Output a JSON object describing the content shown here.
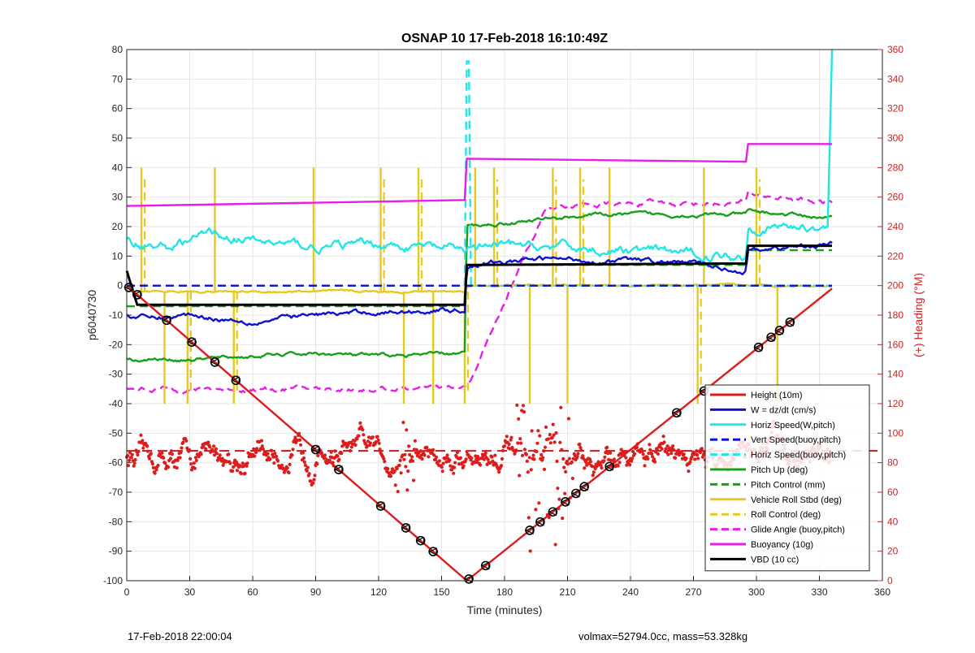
{
  "footer": {
    "left": "17-Feb-2018 22:00:04",
    "right": "volmax=52794.0cc, mass=53.328kg"
  },
  "chart_data": {
    "type": "line",
    "title": "OSNAP 10 17-Feb-2018 16:10:49Z",
    "xlabel": "Time (minutes)",
    "ylabel": "p6040730",
    "ylabel_right": "(+) Heading (°M)",
    "xlim": [
      0,
      360
    ],
    "ylim": [
      -100,
      80
    ],
    "ylim_right": [
      0,
      360
    ],
    "x_ticks": [
      0,
      30,
      60,
      90,
      120,
      150,
      180,
      210,
      240,
      270,
      300,
      330,
      360
    ],
    "y_ticks": [
      80,
      70,
      60,
      50,
      40,
      30,
      20,
      10,
      0,
      -10,
      -20,
      -30,
      -40,
      -50,
      -60,
      -70,
      -80,
      -90,
      -100
    ],
    "y_right_ticks": [
      360,
      340,
      320,
      300,
      280,
      260,
      240,
      220,
      200,
      180,
      160,
      140,
      120,
      100,
      80,
      60,
      40,
      20,
      0
    ],
    "grid": true,
    "legend_position": "bottom-right",
    "series": [
      {
        "name": "Height (10m)",
        "color": "#dd1c1c",
        "style": "solid",
        "x": [
          0,
          162,
          336
        ],
        "y": [
          0,
          -100,
          -1
        ],
        "markers_x": [
          1,
          5,
          19,
          31,
          42,
          52,
          90,
          101,
          121,
          133,
          140,
          146,
          163,
          171,
          192,
          197,
          203,
          209,
          214,
          218,
          230,
          262,
          275,
          301,
          307,
          311,
          316
        ]
      },
      {
        "name": "W = dz/dt (cm/s)",
        "color": "#1010d0",
        "style": "solid",
        "x": [
          0,
          10,
          30,
          60,
          90,
          120,
          161,
          162,
          200,
          260,
          295,
          296,
          336
        ],
        "y": [
          -10,
          -11,
          -10,
          -12,
          -10,
          -9,
          -8,
          7,
          9,
          8,
          5,
          12,
          14
        ]
      },
      {
        "name": "Horiz Speed(W,pitch)",
        "color": "#22e6e6",
        "style": "solid",
        "x": [
          0,
          20,
          40,
          60,
          90,
          120,
          161,
          162,
          200,
          260,
          295,
          296,
          334,
          336
        ],
        "y": [
          15,
          13,
          18,
          15,
          13,
          14,
          12,
          13,
          13,
          11,
          10,
          20,
          20,
          80
        ]
      },
      {
        "name": "Vert Speed(buoy,pitch)",
        "color": "#1010d0",
        "style": "dashed",
        "x": [
          0,
          336
        ],
        "y": [
          0,
          0
        ]
      },
      {
        "name": "Horiz Speed(buoy,pitch)",
        "color": "#22e6e6",
        "style": "dashed",
        "x": [
          0,
          161,
          162,
          163,
          164,
          336
        ],
        "y": [
          0,
          0,
          76,
          76,
          0,
          0
        ]
      },
      {
        "name": "Pitch Up (deg)",
        "color": "#18a018",
        "style": "solid",
        "x": [
          0,
          30,
          60,
          90,
          120,
          161,
          162,
          190,
          220,
          260,
          295,
          296,
          336
        ],
        "y": [
          -25,
          -25,
          -24,
          -23,
          -24,
          -23,
          20,
          22,
          24,
          24,
          24,
          25,
          23
        ]
      },
      {
        "name": "Pitch Control (mm)",
        "color": "#18a018",
        "style": "dashed",
        "x": [
          0,
          161,
          162,
          295,
          296,
          336
        ],
        "y": [
          -7,
          -7,
          7,
          7,
          12,
          12
        ]
      },
      {
        "name": "Vehicle Roll Stbd (deg)",
        "color": "#e8c81a",
        "style": "solid",
        "x": [
          0,
          161,
          162,
          336
        ],
        "y": [
          -2,
          -2,
          0,
          0
        ]
      },
      {
        "name": "Roll Control (deg)",
        "color": "#e8c81a",
        "style": "dashed",
        "x": [
          0,
          336
        ],
        "y": [
          0,
          0
        ]
      },
      {
        "name": "Glide Angle (buoy,pitch)",
        "color": "#e61ee6",
        "style": "dashed",
        "x": [
          0,
          161,
          162,
          200,
          260,
          295,
          296,
          336
        ],
        "y": [
          -35,
          -35,
          -35,
          27,
          28,
          28,
          31,
          28
        ]
      },
      {
        "name": "Buoyancy (10g)",
        "color": "#e61ee6",
        "style": "solid",
        "x": [
          0,
          161,
          162,
          295,
          296,
          336
        ],
        "y": [
          27,
          29,
          43,
          42,
          48,
          48
        ]
      },
      {
        "name": "VBD (10 cc)",
        "color": "#000000",
        "style": "solid",
        "x": [
          0,
          5,
          161,
          162,
          295,
          296,
          336
        ],
        "y": [
          5,
          -6.5,
          -6.5,
          7,
          7.5,
          13.5,
          13.5
        ]
      },
      {
        "name": "Heading (deg)",
        "axis": "right",
        "color": "#dd1c1c",
        "style": "dots",
        "mean": 88
      }
    ]
  }
}
